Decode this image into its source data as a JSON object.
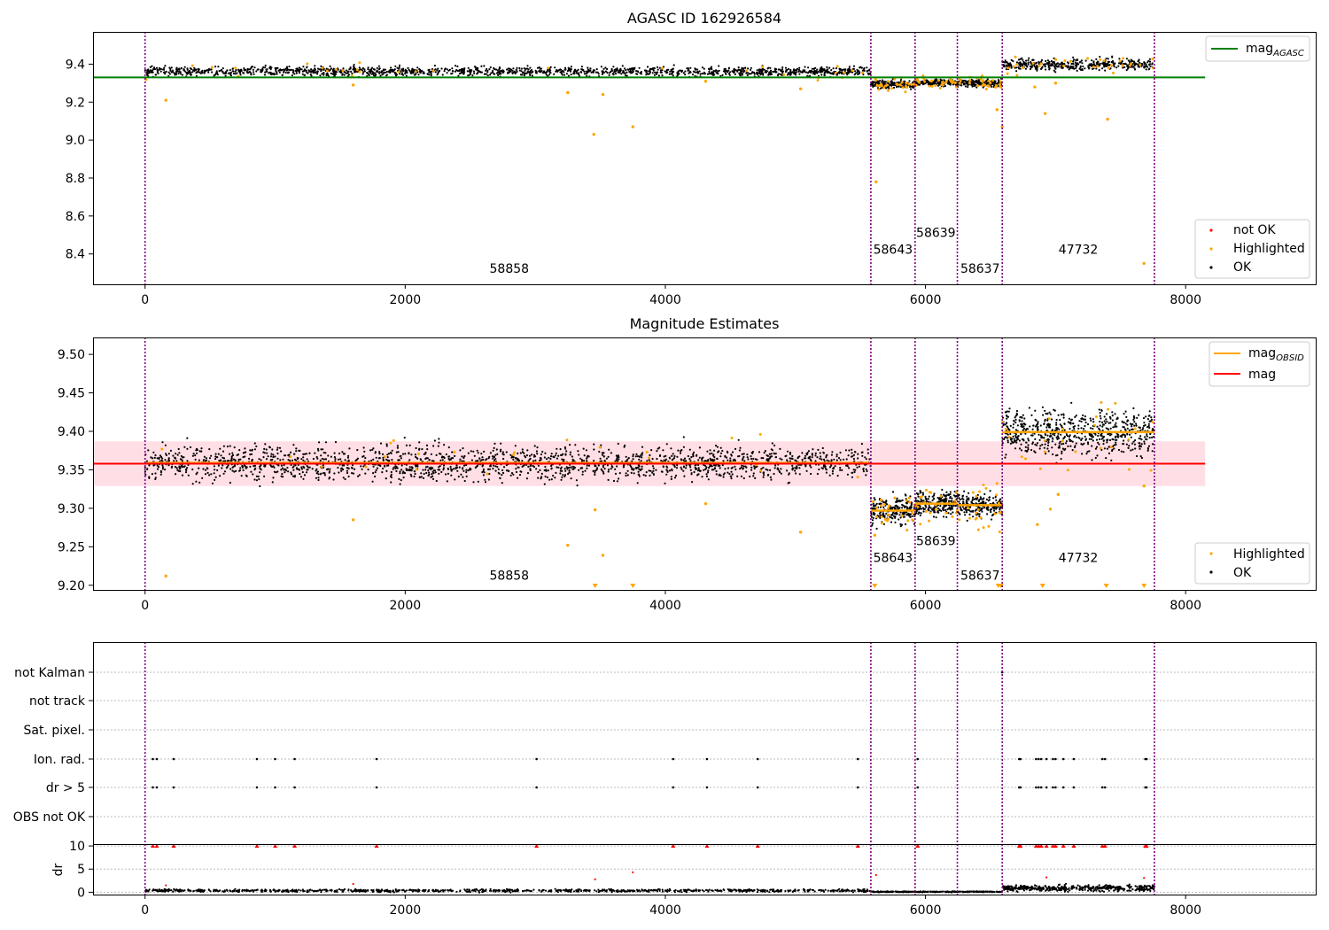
{
  "figure": {
    "obsids": [
      "58858",
      "58643",
      "58639",
      "58637",
      "47732"
    ],
    "obsid_bounds": [
      0,
      5580,
      5920,
      6245,
      6590,
      7760
    ],
    "colors": {
      "ok": "#000000",
      "highlighted": "#ffa500",
      "not_ok": "#ff0000",
      "agasc": "#008000",
      "mag_line": "#ff0000",
      "mag_band": "#ffc0cb",
      "obsid_mag": "#ffa500",
      "vline": "#800080"
    }
  },
  "chart_data": [
    {
      "type": "scatter",
      "title": "AGASC ID 162926584",
      "xlim": [
        -400,
        9000
      ],
      "ylim": [
        8.24,
        9.57
      ],
      "xticks": [
        "0",
        "2000",
        "4000",
        "6000",
        "8000"
      ],
      "yticks": [
        "8.4",
        "8.6",
        "8.8",
        "9.0",
        "9.2",
        "9.4"
      ],
      "legend_upper": [
        "mag_AGASC"
      ],
      "legend_lower": [
        "not OK",
        "Highlighted",
        "OK"
      ],
      "mag_agasc": 9.33,
      "segments": [
        {
          "obsid": "58858",
          "x0": 0,
          "x1": 5580,
          "mean": 9.362,
          "spread": 0.012,
          "n": 1500
        },
        {
          "obsid": "58643",
          "x0": 5580,
          "x1": 5920,
          "mean": 9.293,
          "spread": 0.01,
          "n": 180
        },
        {
          "obsid": "58639",
          "x0": 5920,
          "x1": 6245,
          "mean": 9.303,
          "spread": 0.008,
          "n": 170
        },
        {
          "obsid": "58637",
          "x0": 6245,
          "x1": 6590,
          "mean": 9.3,
          "spread": 0.01,
          "n": 170
        },
        {
          "obsid": "47732",
          "x0": 6590,
          "x1": 7760,
          "mean": 9.398,
          "spread": 0.015,
          "n": 420
        }
      ],
      "highlighted_outliers": [
        [
          160,
          9.21
        ],
        [
          1600,
          9.29
        ],
        [
          3250,
          9.25
        ],
        [
          3450,
          9.03
        ],
        [
          3520,
          9.24
        ],
        [
          3750,
          9.07
        ],
        [
          4310,
          9.31
        ],
        [
          5040,
          9.27
        ],
        [
          5620,
          8.78
        ],
        [
          6550,
          9.16
        ],
        [
          6590,
          9.07
        ],
        [
          6840,
          9.28
        ],
        [
          6920,
          9.14
        ],
        [
          7000,
          9.3
        ],
        [
          7400,
          9.11
        ],
        [
          7680,
          8.35
        ]
      ],
      "obsid_labels": [
        {
          "text": "58858",
          "x": 2800,
          "y": 8.3
        },
        {
          "text": "58643",
          "x": 5750,
          "y": 8.4
        },
        {
          "text": "58639",
          "x": 6080,
          "y": 8.49
        },
        {
          "text": "58637",
          "x": 6420,
          "y": 8.3
        },
        {
          "text": "47732",
          "x": 7175,
          "y": 8.4
        }
      ]
    },
    {
      "type": "scatter",
      "title": "Magnitude Estimates",
      "xlim": [
        -400,
        9000
      ],
      "ylim": [
        9.194,
        9.522
      ],
      "xticks": [
        "0",
        "2000",
        "4000",
        "6000",
        "8000"
      ],
      "yticks": [
        "9.20",
        "9.25",
        "9.30",
        "9.35",
        "9.40",
        "9.45",
        "9.50"
      ],
      "legend_upper": [
        "mag_OBSID",
        "mag"
      ],
      "legend_lower": [
        "Highlighted",
        "OK"
      ],
      "mag": 9.358,
      "mag_band": [
        9.329,
        9.387
      ],
      "segments": [
        {
          "obsid": "58858",
          "x0": 0,
          "x1": 5580,
          "mean": 9.359,
          "spread": 0.011,
          "n": 1900
        },
        {
          "obsid": "58643",
          "x0": 5580,
          "x1": 5920,
          "mean": 9.297,
          "spread": 0.009,
          "n": 220
        },
        {
          "obsid": "58639",
          "x0": 5920,
          "x1": 6245,
          "mean": 9.306,
          "spread": 0.008,
          "n": 210
        },
        {
          "obsid": "58637",
          "x0": 6245,
          "x1": 6590,
          "mean": 9.304,
          "spread": 0.008,
          "n": 210
        },
        {
          "obsid": "47732",
          "x0": 6590,
          "x1": 7760,
          "mean": 9.399,
          "spread": 0.014,
          "n": 650
        }
      ],
      "highlighted_outliers": [
        [
          160,
          9.212
        ],
        [
          1600,
          9.285
        ],
        [
          3250,
          9.252
        ],
        [
          3460,
          9.298
        ],
        [
          3520,
          9.239
        ],
        [
          4310,
          9.306
        ],
        [
          5040,
          9.269
        ],
        [
          5610,
          9.265
        ],
        [
          6860,
          9.279
        ],
        [
          6960,
          9.299
        ],
        [
          7020,
          9.318
        ],
        [
          7680,
          9.329
        ]
      ],
      "clipped_markers": [
        3460,
        3750,
        5610,
        6560,
        6580,
        6900,
        7390,
        7680
      ],
      "obsid_labels": [
        {
          "text": "58858",
          "x": 2800,
          "y": 9.207
        },
        {
          "text": "58643",
          "x": 5750,
          "y": 9.23
        },
        {
          "text": "58639",
          "x": 6080,
          "y": 9.252
        },
        {
          "text": "58637",
          "x": 6420,
          "y": 9.207
        },
        {
          "text": "47732",
          "x": 7175,
          "y": 9.23
        }
      ]
    },
    {
      "type": "scatter",
      "title": "",
      "xlim": [
        -400,
        9000
      ],
      "xticks": [
        "0",
        "2000",
        "4000",
        "6000",
        "8000"
      ],
      "flag_rows": [
        "not Kalman",
        "not track",
        "Sat. pixel.",
        "Ion. rad.",
        "dr > 5",
        "OBS not OK"
      ],
      "flagged_x": [
        60,
        90,
        220,
        860,
        1000,
        1150,
        1780,
        3010,
        4060,
        4320,
        4710,
        5480,
        5940,
        6720,
        6730,
        6850,
        6870,
        6890,
        6930,
        6980,
        7000,
        7060,
        7140,
        7360,
        7380,
        7690,
        7700
      ],
      "dr_label": "dr",
      "dr_yticks": [
        "0",
        "5",
        "10"
      ],
      "dr_ylim": [
        -0.5,
        10.4
      ],
      "dr_outliers": [
        [
          160,
          1.5
        ],
        [
          1600,
          1.8
        ],
        [
          3460,
          2.8
        ],
        [
          3750,
          4.3
        ],
        [
          5620,
          3.7
        ],
        [
          6930,
          3.2
        ],
        [
          7680,
          3.1
        ]
      ],
      "dr_segments": [
        {
          "x0": 0,
          "x1": 5580,
          "mean": 0.35,
          "spread": 0.15,
          "n": 900
        },
        {
          "x0": 5580,
          "x1": 6590,
          "mean": 0.1,
          "spread": 0.05,
          "n": 300
        },
        {
          "x0": 6590,
          "x1": 7760,
          "mean": 0.9,
          "spread": 0.35,
          "n": 400
        }
      ]
    }
  ]
}
